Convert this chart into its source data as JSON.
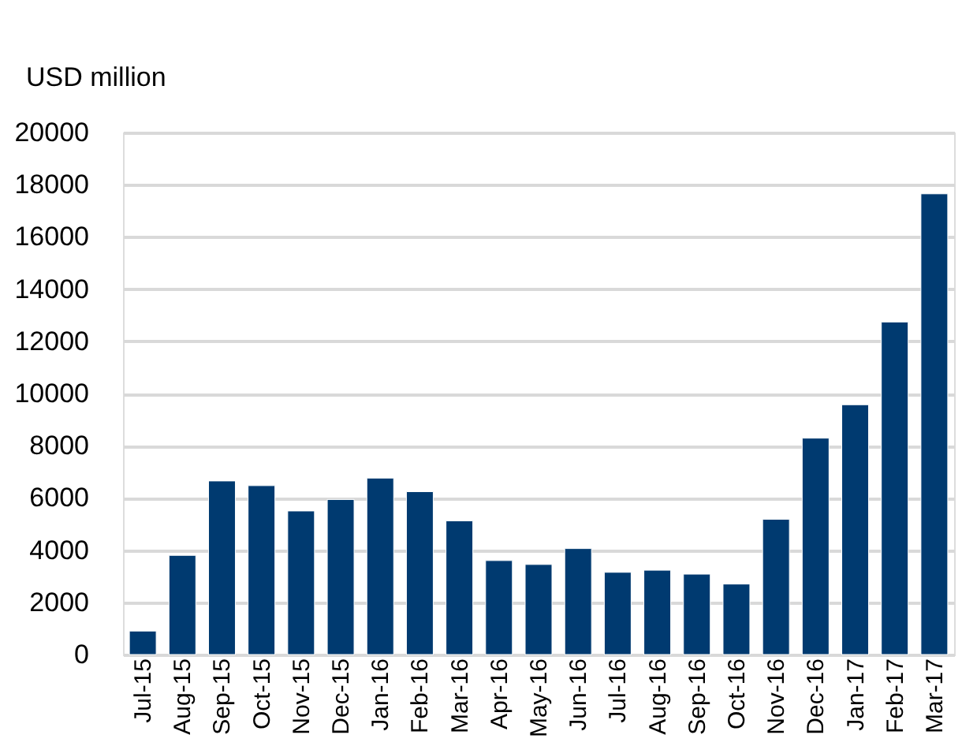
{
  "chart_data": {
    "type": "bar",
    "ylabel": "USD million",
    "categories": [
      "Jul-15",
      "Aug-15",
      "Sep-15",
      "Oct-15",
      "Nov-15",
      "Dec-15",
      "Jan-16",
      "Feb-16",
      "Mar-16",
      "Apr-16",
      "May-16",
      "Jun-16",
      "Jul-16",
      "Aug-16",
      "Sep-16",
      "Oct-16",
      "Nov-16",
      "Dec-16",
      "Jan-17",
      "Feb-17",
      "Mar-17"
    ],
    "series": [
      {
        "color": "#003a70",
        "values": [
          900,
          3800,
          6650,
          6470,
          5500,
          5940,
          6760,
          6240,
          5120,
          3600,
          3450,
          4060,
          3150,
          3230,
          3080,
          2700,
          5180,
          8290,
          9570,
          12740,
          17650
        ]
      }
    ],
    "ylim": [
      0,
      20000
    ],
    "yticks": [
      0,
      2000,
      4000,
      6000,
      8000,
      10000,
      12000,
      14000,
      16000,
      18000,
      20000
    ],
    "grid": "y"
  }
}
